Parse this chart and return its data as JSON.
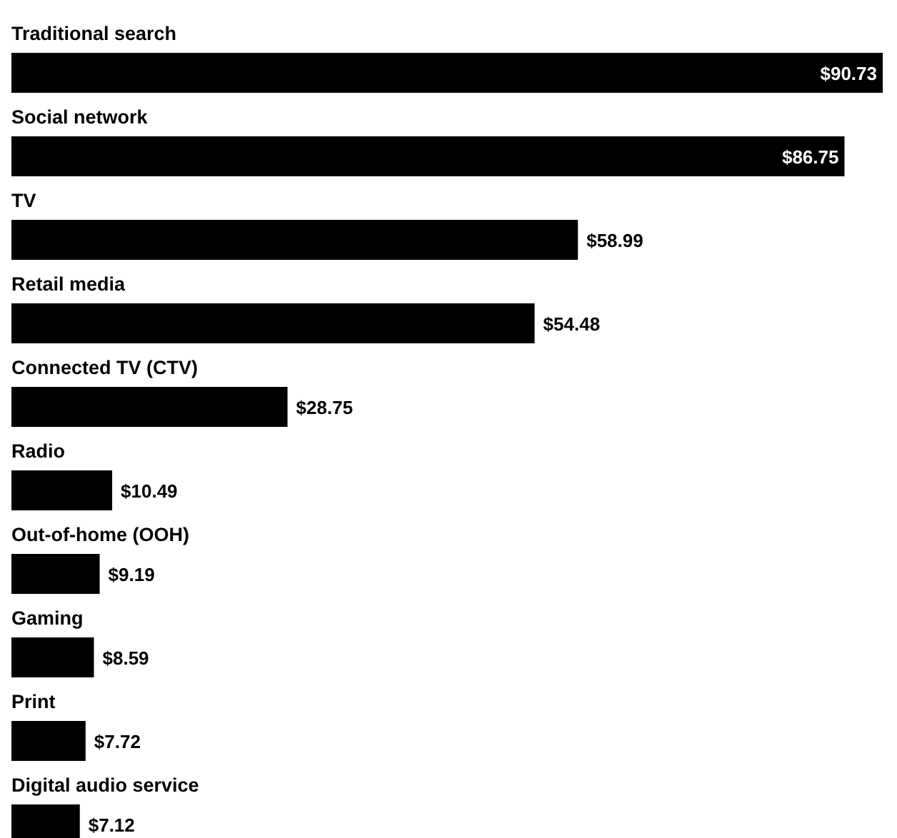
{
  "chart_data": {
    "type": "bar",
    "orientation": "horizontal",
    "categories": [
      "Traditional search",
      "Social network",
      "TV",
      "Retail media",
      "Connected TV (CTV)",
      "Radio",
      "Out-of-home (OOH)",
      "Gaming",
      "Print",
      "Digital audio service"
    ],
    "values": [
      90.73,
      86.75,
      58.99,
      54.48,
      28.75,
      10.49,
      9.19,
      8.59,
      7.72,
      7.12
    ],
    "value_labels": [
      "$90.73",
      "$86.75",
      "$58.99",
      "$54.48",
      "$28.75",
      "$10.49",
      "$9.19",
      "$8.59",
      "$7.72",
      "$7.12"
    ],
    "color": "#000000"
  }
}
